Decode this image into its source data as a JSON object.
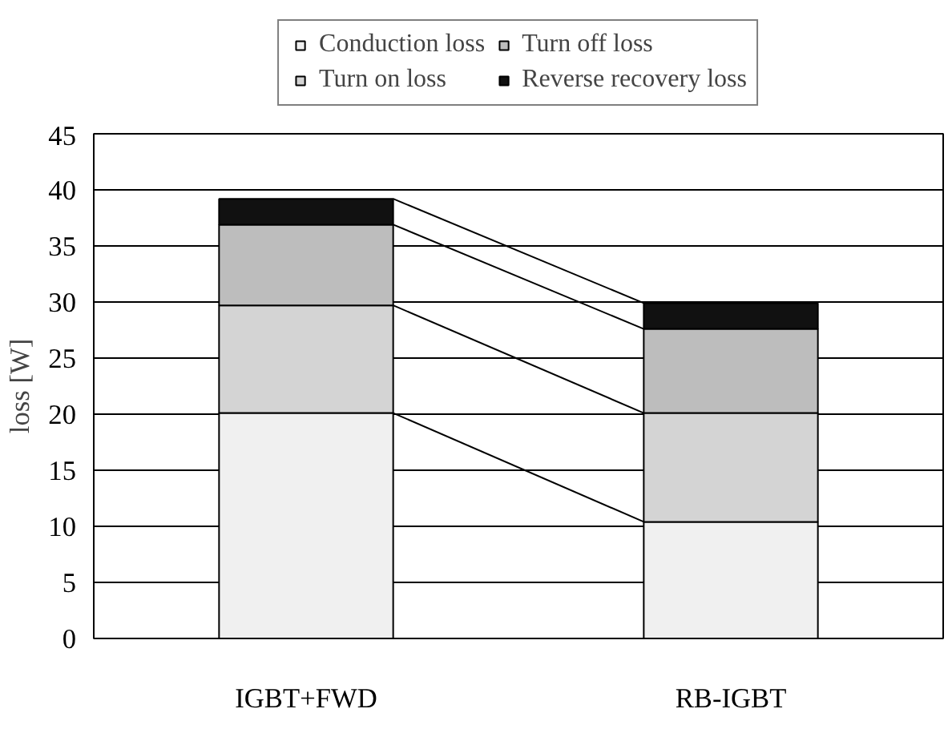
{
  "chart_data": {
    "type": "bar",
    "stacked": true,
    "ylabel": "loss [W]",
    "categories": [
      "IGBT+FWD",
      "RB-IGBT"
    ],
    "series": [
      {
        "name": "Conduction loss",
        "color": "#f0f0f0",
        "values": [
          20.1,
          10.4
        ]
      },
      {
        "name": "Turn on loss",
        "color": "#d4d4d4",
        "values": [
          9.6,
          9.7
        ]
      },
      {
        "name": "Turn off loss",
        "color": "#bdbdbd",
        "values": [
          7.2,
          7.5
        ]
      },
      {
        "name": "Reverse recovery loss",
        "color": "#111111",
        "values": [
          2.3,
          2.3
        ]
      }
    ],
    "ylim": [
      0,
      45
    ],
    "yticks": [
      0,
      5,
      10,
      15,
      20,
      25,
      30,
      35,
      40,
      45
    ],
    "grid": "y",
    "legend": "top"
  }
}
